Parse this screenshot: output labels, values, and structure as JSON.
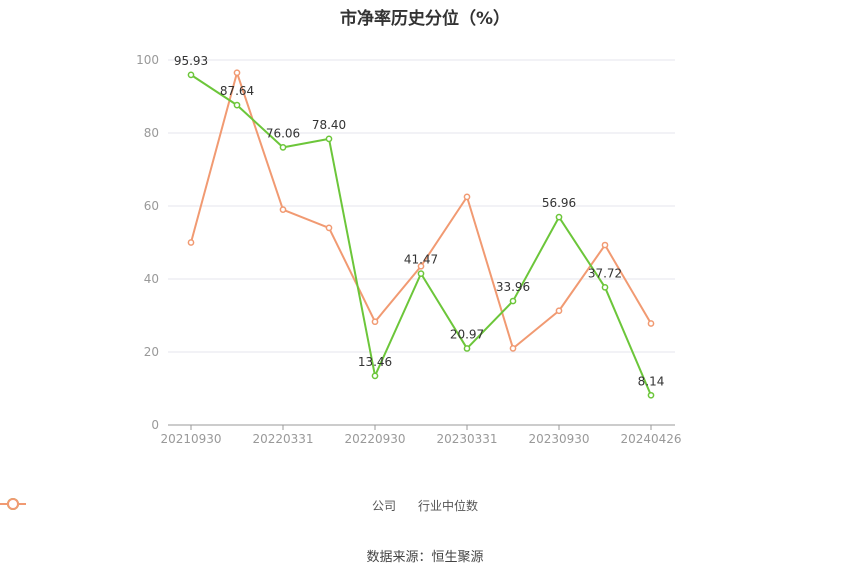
{
  "title": "市净率历史分位（%）",
  "source": "数据来源：恒生聚源",
  "colors": {
    "company": "#6cc63a",
    "industry": "#f19a72",
    "grid": "#e6e6ee",
    "axis": "#999999"
  },
  "chart_data": {
    "type": "line",
    "title": "市净率历史分位（%）",
    "ylim": [
      0,
      100
    ],
    "y_ticks": [
      0,
      20,
      40,
      60,
      80,
      100
    ],
    "x_ticks": [
      "20210930",
      "20220331",
      "20220930",
      "20230331",
      "20230930",
      "20240426"
    ],
    "grid": true,
    "legend_position": "bottom",
    "series": [
      {
        "name": "公司",
        "values": [
          95.93,
          87.64,
          76.06,
          78.4,
          13.46,
          41.47,
          20.97,
          33.96,
          56.96,
          37.72,
          8.14
        ],
        "labels": [
          "95.93",
          "87.64",
          "76.06",
          "78.40",
          "13.46",
          "41.47",
          "20.97",
          "33.96",
          "56.96",
          "37.72",
          "8.14"
        ]
      },
      {
        "name": "行业中位数",
        "values": [
          50.0,
          96.5,
          59.0,
          54.0,
          28.3,
          43.5,
          62.5,
          21.0,
          31.3,
          49.3,
          27.8
        ]
      }
    ]
  }
}
